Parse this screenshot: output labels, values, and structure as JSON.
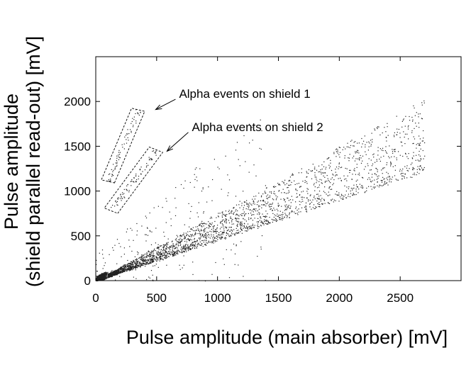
{
  "chart_data": {
    "type": "scatter",
    "title": "",
    "xlabel": "Pulse amplitude (main absorber) [mV]",
    "ylabel_line1": "Pulse amplitude",
    "ylabel_line2": "(shield parallel read-out) [mV]",
    "xlim": [
      0,
      3000
    ],
    "ylim": [
      0,
      2500
    ],
    "x_ticks": [
      0,
      500,
      1000,
      1500,
      2000,
      2500
    ],
    "y_ticks": [
      0,
      500,
      1000,
      1500,
      2000
    ],
    "grid": false,
    "legend": "none",
    "populations": [
      {
        "description": "dense low-energy cluster",
        "x_range": [
          0,
          250
        ],
        "y_range": [
          0,
          300
        ]
      },
      {
        "description": "main band (events in main absorber)",
        "x_range": [
          100,
          2700
        ],
        "y_over_x_range": [
          0.45,
          0.75
        ]
      },
      {
        "description": "alpha events on shield 1",
        "x_range": [
          150,
          380
        ],
        "y_range": [
          1100,
          1900
        ]
      },
      {
        "description": "alpha events on shield 2",
        "x_range": [
          200,
          480
        ],
        "y_range": [
          750,
          1450
        ]
      }
    ],
    "regions": [
      {
        "label": "shield1",
        "corners": [
          [
            154,
            1091
          ],
          [
            402,
            1890
          ],
          [
            294,
            1925
          ],
          [
            46,
            1125
          ]
        ]
      },
      {
        "label": "shield2",
        "corners": [
          [
            180,
            751
          ],
          [
            550,
            1432
          ],
          [
            440,
            1491
          ],
          [
            70,
            810
          ]
        ]
      }
    ],
    "annotations": [
      {
        "text": "Alpha events on shield 1",
        "arrow_from": [
          655,
          2025
        ],
        "arrow_to": [
          492,
          1910
        ]
      },
      {
        "text": "Alpha events on shield 2",
        "arrow_from": [
          760,
          1655
        ],
        "arrow_to": [
          585,
          1445
        ]
      }
    ]
  },
  "colors": {
    "points": "#222222",
    "axes": "#000000",
    "background": "#ffffff"
  }
}
